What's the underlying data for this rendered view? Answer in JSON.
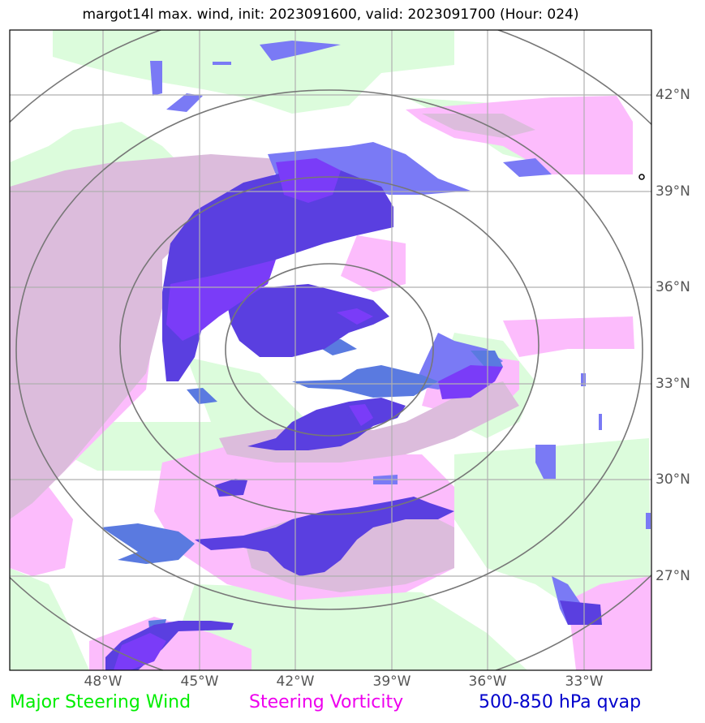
{
  "title": "margot14l max. wind, init: 2023091600, valid: 2023091700 (Hour: 024)",
  "map": {
    "lat_ticks": [
      "42°N",
      "39°N",
      "36°N",
      "33°N",
      "30°N",
      "27°N"
    ],
    "lon_ticks": [
      "48°W",
      "45°W",
      "42°W",
      "39°W",
      "36°W",
      "33°W"
    ],
    "storm_marker": "o",
    "range_rings_count": 4
  },
  "legend": [
    {
      "label": "Major Steering Wind",
      "color": "#00ee00"
    },
    {
      "label": "Steering Vorticity",
      "color": "#ee00ee"
    },
    {
      "label": "500-850 hPa qvap",
      "color": "#0000cc"
    }
  ],
  "colors": {
    "steering_wind_fill": "#dcfcdc",
    "vorticity_fill": "#fcbcfc",
    "overlap_fill": "#dcbcdc",
    "qvap_light": "#7a7af5",
    "qvap_dark": "#5a3fe0",
    "qvap_violet": "#7a3cf8",
    "qvap_blue": "#5a7ae0"
  }
}
